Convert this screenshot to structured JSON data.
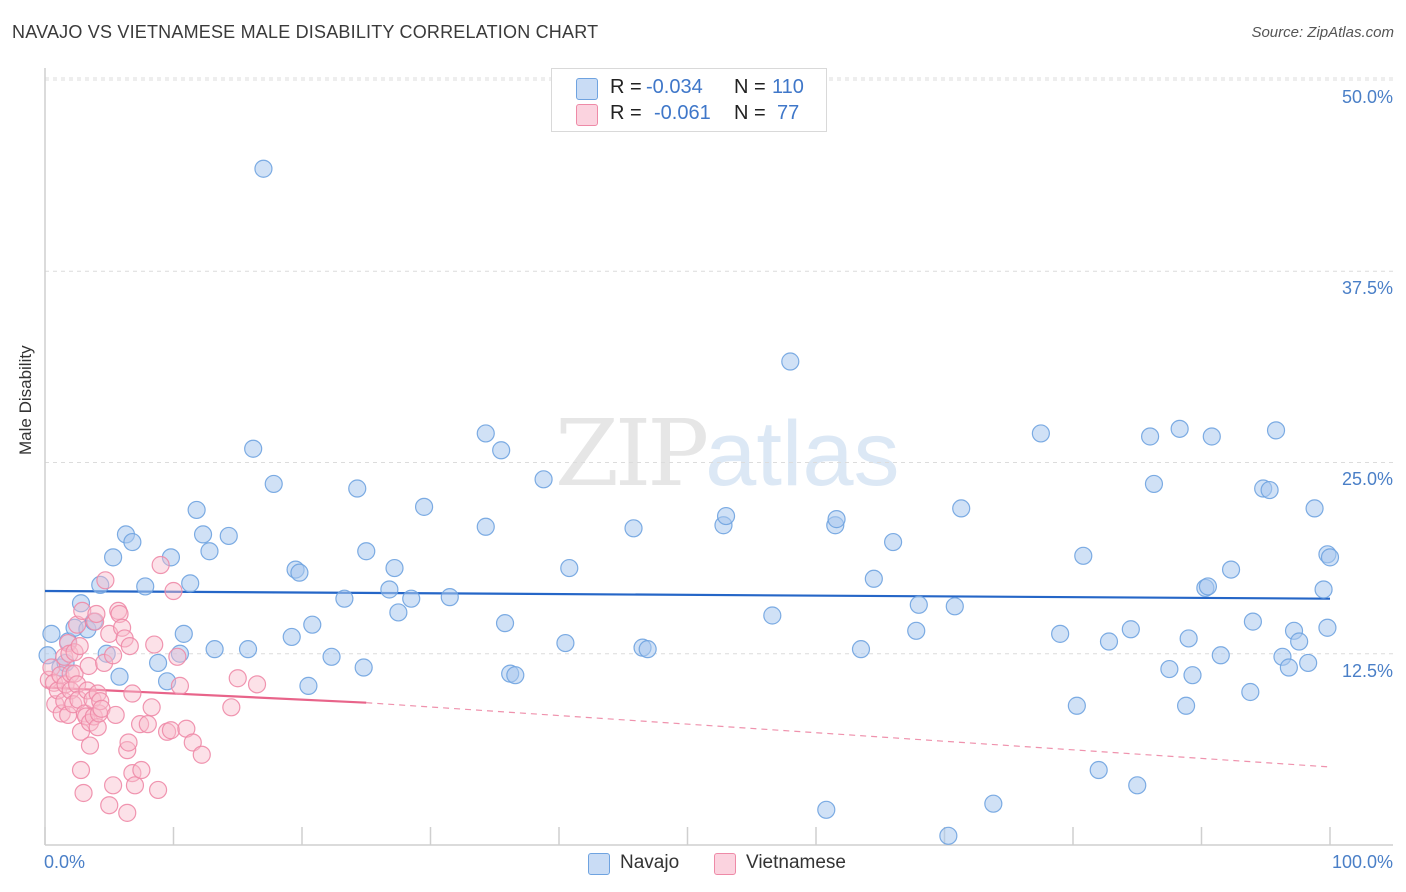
{
  "title": "NAVAJO VS VIETNAMESE MALE DISABILITY CORRELATION CHART",
  "source": "Source: ZipAtlas.com",
  "watermark": {
    "zip": "ZIP",
    "atlas": "atlas"
  },
  "legend_top": [
    {
      "r_label": "R =",
      "r_value": "-0.034",
      "n_label": "N =",
      "n_value": "110",
      "color": "#aac8ee"
    },
    {
      "r_label": "R =",
      "r_value": "-0.061",
      "n_label": "N =",
      "n_value": "77",
      "color": "#f8bccd"
    }
  ],
  "chart_data": {
    "type": "scatter",
    "title": "NAVAJO VS VIETNAMESE MALE DISABILITY CORRELATION CHART",
    "xlabel": "",
    "ylabel": "Male Disability",
    "xlim": [
      0,
      100
    ],
    "ylim": [
      0,
      50
    ],
    "x_tick_labels": [
      "0.0%",
      "100.0%"
    ],
    "y_ticks": [
      12.5,
      25.0,
      37.5,
      50.0
    ],
    "y_tick_labels": [
      "12.5%",
      "25.0%",
      "37.5%",
      "50.0%"
    ],
    "grid": true,
    "legend_placement": "bottom",
    "series": [
      {
        "name": "Navajo",
        "color": "#6fa3e0",
        "fill": "#aac8ee",
        "trend": {
          "x": [
            0,
            100
          ],
          "y": [
            16.6,
            16.1
          ],
          "dashed_from": null,
          "line_color": "#2566c7"
        },
        "points": [
          [
            0.5,
            13.8
          ],
          [
            1.2,
            11.6
          ],
          [
            1.8,
            13.3
          ],
          [
            2.3,
            14.2
          ],
          [
            2.8,
            15.8
          ],
          [
            3.3,
            14.1
          ],
          [
            3.8,
            14.6
          ],
          [
            4.3,
            17.0
          ],
          [
            4.8,
            12.5
          ],
          [
            5.3,
            18.8
          ],
          [
            5.8,
            11.0
          ],
          [
            6.3,
            20.3
          ],
          [
            6.8,
            19.8
          ],
          [
            7.8,
            16.9
          ],
          [
            8.8,
            11.9
          ],
          [
            9.5,
            10.7
          ],
          [
            9.8,
            18.8
          ],
          [
            10.5,
            12.5
          ],
          [
            10.8,
            13.8
          ],
          [
            11.3,
            17.1
          ],
          [
            11.8,
            21.9
          ],
          [
            12.3,
            20.3
          ],
          [
            12.8,
            19.2
          ],
          [
            13.2,
            12.8
          ],
          [
            14.3,
            20.2
          ],
          [
            15.8,
            12.8
          ],
          [
            16.2,
            25.9
          ],
          [
            17.0,
            44.2
          ],
          [
            17.8,
            23.6
          ],
          [
            19.2,
            13.6
          ],
          [
            19.5,
            18.0
          ],
          [
            19.8,
            17.8
          ],
          [
            20.8,
            14.4
          ],
          [
            20.5,
            10.4
          ],
          [
            22.3,
            12.3
          ],
          [
            23.3,
            16.1
          ],
          [
            24.3,
            23.3
          ],
          [
            24.8,
            11.6
          ],
          [
            25.0,
            19.2
          ],
          [
            26.8,
            16.7
          ],
          [
            27.2,
            18.1
          ],
          [
            27.5,
            15.2
          ],
          [
            28.5,
            16.1
          ],
          [
            29.5,
            22.1
          ],
          [
            31.5,
            16.2
          ],
          [
            34.3,
            20.8
          ],
          [
            34.3,
            26.9
          ],
          [
            35.5,
            25.8
          ],
          [
            35.8,
            14.5
          ],
          [
            36.2,
            11.2
          ],
          [
            36.6,
            11.1
          ],
          [
            38.8,
            23.9
          ],
          [
            40.5,
            13.2
          ],
          [
            40.8,
            18.1
          ],
          [
            45.8,
            20.7
          ],
          [
            46.5,
            12.9
          ],
          [
            46.9,
            12.8
          ],
          [
            52.8,
            20.9
          ],
          [
            53.0,
            21.5
          ],
          [
            56.6,
            15.0
          ],
          [
            58.0,
            31.6
          ],
          [
            60.8,
            2.3
          ],
          [
            61.5,
            20.9
          ],
          [
            61.6,
            21.3
          ],
          [
            63.5,
            12.8
          ],
          [
            64.5,
            17.4
          ],
          [
            66.0,
            19.8
          ],
          [
            67.8,
            14.0
          ],
          [
            68.0,
            15.7
          ],
          [
            70.3,
            0.6
          ],
          [
            70.8,
            15.6
          ],
          [
            71.3,
            22.0
          ],
          [
            73.8,
            2.7
          ],
          [
            77.5,
            26.9
          ],
          [
            79.0,
            13.8
          ],
          [
            80.3,
            9.1
          ],
          [
            80.8,
            18.9
          ],
          [
            82.0,
            4.9
          ],
          [
            82.8,
            13.3
          ],
          [
            84.5,
            14.1
          ],
          [
            85.0,
            3.9
          ],
          [
            86.0,
            26.7
          ],
          [
            86.3,
            23.6
          ],
          [
            87.5,
            11.5
          ],
          [
            88.3,
            27.2
          ],
          [
            88.8,
            9.1
          ],
          [
            89.0,
            13.5
          ],
          [
            89.3,
            11.1
          ],
          [
            90.3,
            16.8
          ],
          [
            90.5,
            16.9
          ],
          [
            90.8,
            26.7
          ],
          [
            91.5,
            12.4
          ],
          [
            92.3,
            18.0
          ],
          [
            93.8,
            10.0
          ],
          [
            94.0,
            14.6
          ],
          [
            94.8,
            23.3
          ],
          [
            95.3,
            23.2
          ],
          [
            95.8,
            27.1
          ],
          [
            96.3,
            12.3
          ],
          [
            96.8,
            11.6
          ],
          [
            97.2,
            14.0
          ],
          [
            97.6,
            13.3
          ],
          [
            98.3,
            11.9
          ],
          [
            98.8,
            22.0
          ],
          [
            99.5,
            16.7
          ],
          [
            99.8,
            14.2
          ],
          [
            99.8,
            19.0
          ],
          [
            100.0,
            18.8
          ],
          [
            0.2,
            12.4
          ],
          [
            1.6,
            11.9
          ]
        ]
      },
      {
        "name": "Vietnamese",
        "color": "#ee8aa7",
        "fill": "#f8bccd",
        "trend": {
          "x": [
            0,
            25,
            100
          ],
          "y": [
            10.3,
            9.3,
            5.1
          ],
          "dashed_from": 25,
          "line_color": "#e8648a"
        },
        "points": [
          [
            0.3,
            10.8
          ],
          [
            0.5,
            11.6
          ],
          [
            0.7,
            10.6
          ],
          [
            0.8,
            9.2
          ],
          [
            1.0,
            10.1
          ],
          [
            1.2,
            11.1
          ],
          [
            1.3,
            8.6
          ],
          [
            1.5,
            9.4
          ],
          [
            1.5,
            12.3
          ],
          [
            1.6,
            10.5
          ],
          [
            1.8,
            13.2
          ],
          [
            1.8,
            8.5
          ],
          [
            1.9,
            12.5
          ],
          [
            2.0,
            11.2
          ],
          [
            2.0,
            10.1
          ],
          [
            2.2,
            9.2
          ],
          [
            2.3,
            12.6
          ],
          [
            2.3,
            11.2
          ],
          [
            2.5,
            14.4
          ],
          [
            2.5,
            10.5
          ],
          [
            2.6,
            9.5
          ],
          [
            2.7,
            13.0
          ],
          [
            2.8,
            4.9
          ],
          [
            2.8,
            7.4
          ],
          [
            2.9,
            15.3
          ],
          [
            3.0,
            3.4
          ],
          [
            3.1,
            8.6
          ],
          [
            3.2,
            8.4
          ],
          [
            3.3,
            10.1
          ],
          [
            3.4,
            11.7
          ],
          [
            3.5,
            8.0
          ],
          [
            3.5,
            6.5
          ],
          [
            3.7,
            9.5
          ],
          [
            3.8,
            8.4
          ],
          [
            3.9,
            14.6
          ],
          [
            4.0,
            15.1
          ],
          [
            4.1,
            7.7
          ],
          [
            4.1,
            9.9
          ],
          [
            4.2,
            8.6
          ],
          [
            4.3,
            9.4
          ],
          [
            4.4,
            8.9
          ],
          [
            4.6,
            11.9
          ],
          [
            4.7,
            17.3
          ],
          [
            5.0,
            2.6
          ],
          [
            5.0,
            13.8
          ],
          [
            5.3,
            12.4
          ],
          [
            5.3,
            3.9
          ],
          [
            5.5,
            8.5
          ],
          [
            5.7,
            15.3
          ],
          [
            5.8,
            15.1
          ],
          [
            6.0,
            14.2
          ],
          [
            6.2,
            13.5
          ],
          [
            6.4,
            2.1
          ],
          [
            6.4,
            6.2
          ],
          [
            6.5,
            6.7
          ],
          [
            6.6,
            13.0
          ],
          [
            6.8,
            9.9
          ],
          [
            6.8,
            4.7
          ],
          [
            7.0,
            3.9
          ],
          [
            7.4,
            7.9
          ],
          [
            7.5,
            4.9
          ],
          [
            8.0,
            7.9
          ],
          [
            8.3,
            9.0
          ],
          [
            8.5,
            13.1
          ],
          [
            8.8,
            3.6
          ],
          [
            9.0,
            18.3
          ],
          [
            9.5,
            7.4
          ],
          [
            9.8,
            7.5
          ],
          [
            10.0,
            16.6
          ],
          [
            10.3,
            12.3
          ],
          [
            10.5,
            10.4
          ],
          [
            11.0,
            7.6
          ],
          [
            11.5,
            6.7
          ],
          [
            12.2,
            5.9
          ],
          [
            14.5,
            9.0
          ],
          [
            15.0,
            10.9
          ],
          [
            16.5,
            10.5
          ]
        ]
      }
    ]
  },
  "legend_bottom": [
    {
      "label": "Navajo",
      "color": "#aac8ee"
    },
    {
      "label": "Vietnamese",
      "color": "#f8bccd"
    }
  ]
}
